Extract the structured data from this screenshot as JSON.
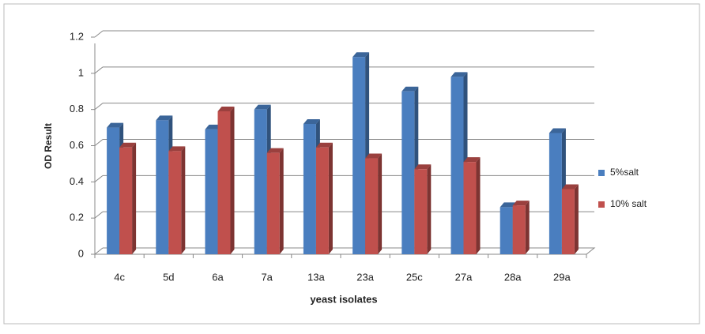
{
  "chart_data": {
    "type": "bar",
    "x_label": "yeast isolates",
    "y_label": "OD Result",
    "categories": [
      "4c",
      "5d",
      "6a",
      "7a",
      "13a",
      "23a",
      "25c",
      "27a",
      "28a",
      "29a"
    ],
    "series": [
      {
        "name": "5%salt",
        "color": "#4a7ebf",
        "values": [
          0.7,
          0.74,
          0.69,
          0.8,
          0.72,
          1.09,
          0.9,
          0.98,
          0.26,
          0.67
        ]
      },
      {
        "name": "10% salt",
        "color": "#c0504d",
        "values": [
          0.59,
          0.57,
          0.79,
          0.56,
          0.59,
          0.53,
          0.47,
          0.51,
          0.27,
          0.36
        ]
      }
    ],
    "ylim": [
      0,
      1.2
    ],
    "yticks": [
      0,
      0.2,
      0.4,
      0.6,
      0.8,
      1,
      1.2
    ],
    "grid": true,
    "legend": "right"
  }
}
